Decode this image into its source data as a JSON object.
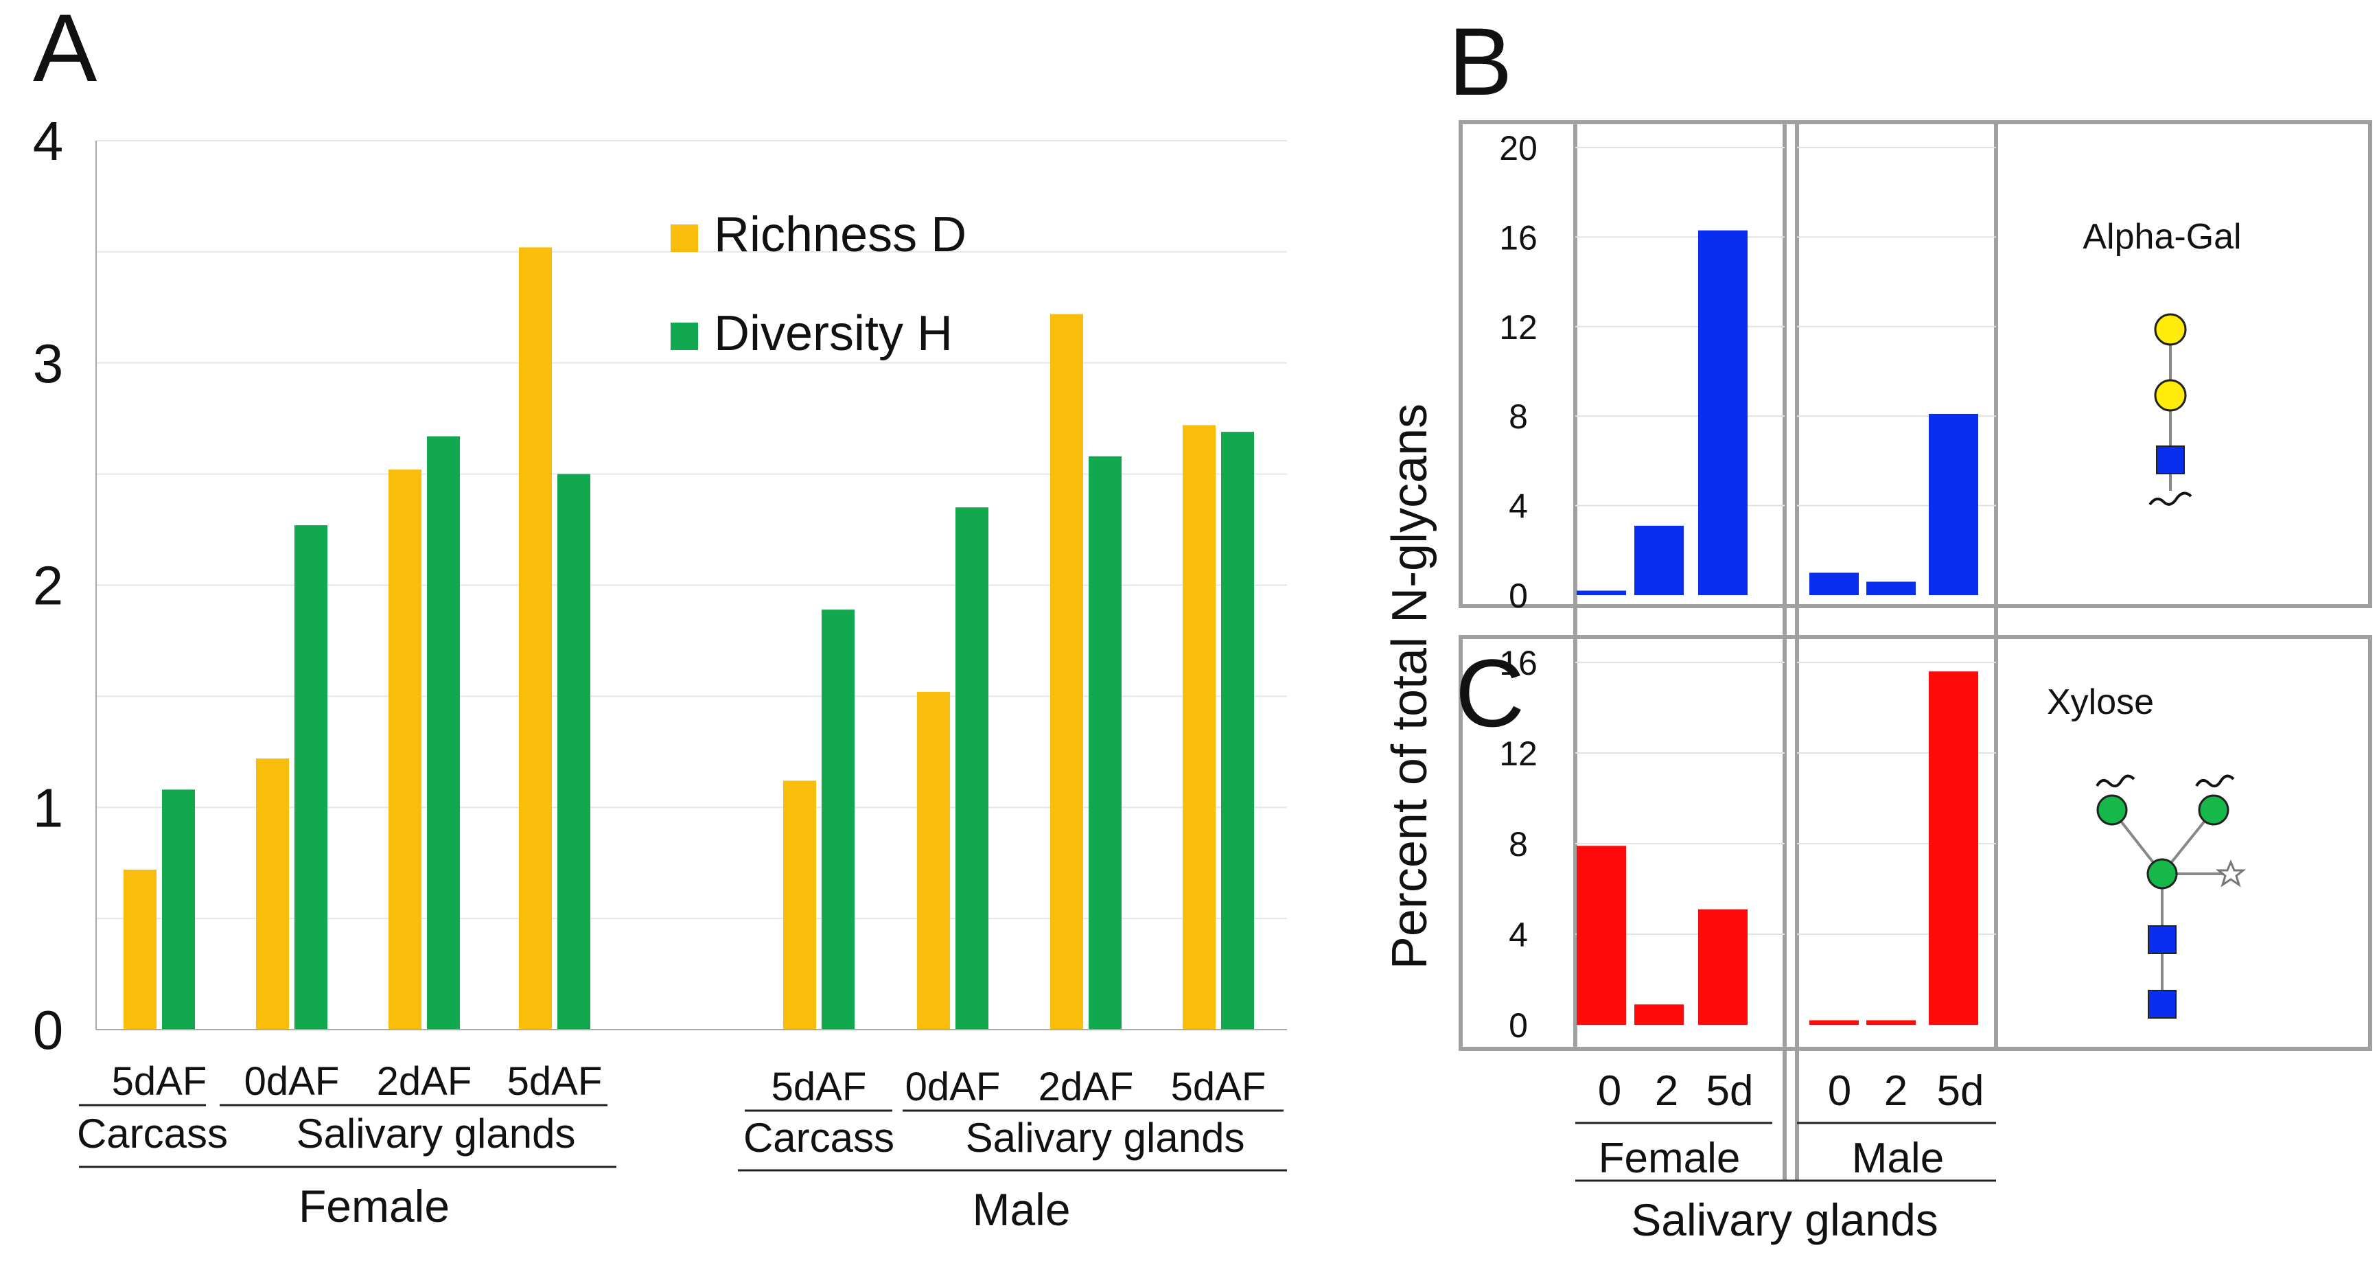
{
  "panel_letters": {
    "a": "A",
    "b": "B",
    "c": "C"
  },
  "shared_ylabel": "Percent of total N-glycans",
  "chart_data": [
    {
      "id": "A",
      "type": "bar",
      "title": "",
      "xlabel": "",
      "ylabel": "",
      "ylim": [
        0,
        4
      ],
      "yticks": [
        0,
        1,
        2,
        3,
        4
      ],
      "ytick_labels": [
        "0",
        "1",
        "2",
        "3",
        "4"
      ],
      "grid": true,
      "legend": "top-center",
      "categories": [
        "5dAF",
        "0dAF",
        "2dAF",
        "5dAF",
        "5dAF",
        "0dAF",
        "2dAF",
        "5dAF"
      ],
      "series": [
        {
          "name": "Richness D",
          "color": "#FBBD0B",
          "values": [
            0.72,
            1.22,
            2.52,
            3.52,
            1.12,
            1.52,
            3.22,
            2.72
          ]
        },
        {
          "name": "Diversity H",
          "color": "#12A84F",
          "values": [
            1.08,
            2.27,
            2.67,
            2.5,
            1.89,
            2.35,
            2.58,
            2.69
          ]
        }
      ],
      "groups": [
        {
          "sex": "Female",
          "tissues": [
            {
              "name": "Carcass",
              "span": 1
            },
            {
              "name": "Salivary glands",
              "span": 3
            }
          ]
        },
        {
          "sex": "Male",
          "tissues": [
            {
              "name": "Carcass",
              "span": 1
            },
            {
              "name": "Salivary glands",
              "span": 3
            }
          ]
        }
      ]
    },
    {
      "id": "B",
      "type": "bar",
      "title": "Alpha-Gal",
      "ylabel": "Percent of total N-glycans",
      "ylim": [
        0,
        20
      ],
      "yticks": [
        0,
        4,
        8,
        12,
        16,
        20
      ],
      "ytick_labels": [
        "0",
        "4",
        "8",
        "12",
        "16",
        "20"
      ],
      "grid": true,
      "color": "#0A2EF0",
      "categories": [
        "0",
        "2",
        "5d"
      ],
      "series": [
        {
          "name": "Female",
          "values": [
            0.2,
            3.1,
            16.3
          ]
        },
        {
          "name": "Male",
          "values": [
            1.0,
            0.6,
            8.1
          ]
        }
      ]
    },
    {
      "id": "C",
      "type": "bar",
      "title": "Xylose",
      "ylabel": "Percent of total N-glycans",
      "ylim": [
        0,
        16
      ],
      "yticks": [
        0,
        4,
        8,
        12,
        16
      ],
      "ytick_labels": [
        "0",
        "4",
        "8",
        "12",
        "16"
      ],
      "grid": true,
      "color": "#FF0A0A",
      "categories": [
        "0",
        "2",
        "5d"
      ],
      "xlabel": "Salivary glands",
      "series": [
        {
          "name": "Female",
          "values": [
            7.9,
            0.9,
            5.1
          ]
        },
        {
          "name": "Male",
          "values": [
            0.2,
            0.2,
            15.6
          ]
        }
      ]
    }
  ],
  "glycan_colors": {
    "galactose": "#FFEB0A",
    "glcnac": "#0A2EF0",
    "mannose": "#17B84A",
    "xylose": "#FFFFFF"
  }
}
